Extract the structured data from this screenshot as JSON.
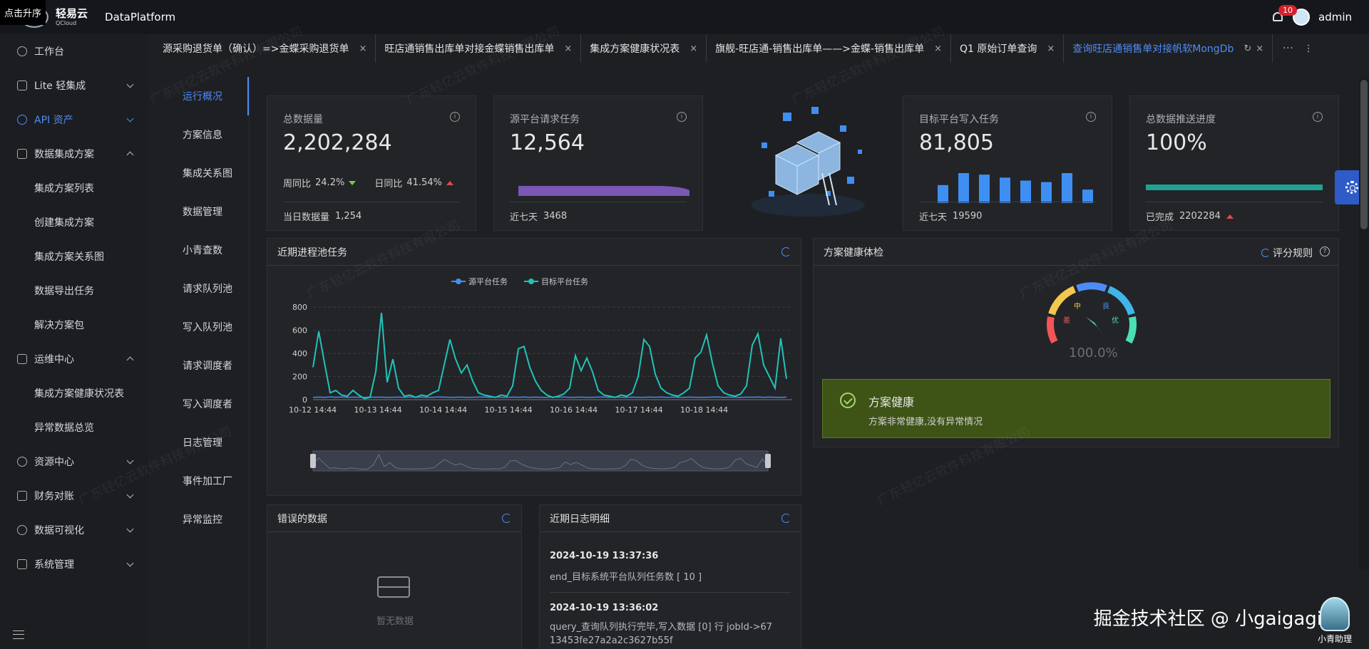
{
  "header": {
    "promo": "点击升序",
    "logo_text": "轻易云",
    "logo_sub": "QCloud",
    "app_name": "DataPlatform",
    "notification_count": "10",
    "user": "admin"
  },
  "sidebar": {
    "items": [
      {
        "label": "工作台",
        "icon": "clock-icon"
      },
      {
        "label": "Lite 轻集成",
        "icon": "lite-icon",
        "expand": "down"
      },
      {
        "label": "API 资产",
        "icon": "compass-icon",
        "expand": "down",
        "active": true
      },
      {
        "label": "数据集成方案",
        "icon": "share-icon",
        "expand": "up"
      },
      {
        "label": "集成方案列表",
        "sub": true
      },
      {
        "label": "创建集成方案",
        "sub": true
      },
      {
        "label": "集成方案关系图",
        "sub": true
      },
      {
        "label": "数据导出任务",
        "sub": true
      },
      {
        "label": "解决方案包",
        "sub": true
      },
      {
        "label": "运维中心",
        "icon": "bolt-icon",
        "expand": "up"
      },
      {
        "label": "集成方案健康状况表",
        "sub": true
      },
      {
        "label": "异常数据总览",
        "sub": true
      },
      {
        "label": "资源中心",
        "icon": "resource-icon",
        "expand": "down"
      },
      {
        "label": "财务对账",
        "icon": "finance-icon",
        "expand": "down"
      },
      {
        "label": "数据可视化",
        "icon": "chart-icon",
        "expand": "down"
      },
      {
        "label": "系统管理",
        "icon": "system-icon",
        "expand": "down"
      }
    ]
  },
  "tabs": [
    {
      "label": "源采购退货单（确认）=>金蝶采购退货单"
    },
    {
      "label": "旺店通销售出库单对接金蝶销售出库单"
    },
    {
      "label": "集成方案健康状况表"
    },
    {
      "label": "旗舰-旺店通-销售出库单——>金蝶-销售出库单"
    },
    {
      "label": "Q1 原始订单查询"
    },
    {
      "label": "查询旺店通销售单对接帆软MongDb",
      "active": true
    }
  ],
  "subnav": [
    "运行概况",
    "方案信息",
    "集成关系图",
    "数据管理",
    "小青查数",
    "请求队列池",
    "写入队列池",
    "请求调度者",
    "写入调度者",
    "日志管理",
    "事件加工厂",
    "异常监控"
  ],
  "stats": {
    "total": {
      "title": "总数据量",
      "value": "2,202,284",
      "wow_label": "周同比",
      "wow": "24.2%",
      "dod_label": "日同比",
      "dod": "41.54%",
      "footer_label": "当日数据量",
      "footer_value": "1,254"
    },
    "source": {
      "title": "源平台请求任务",
      "value": "12,564",
      "footer_label": "近七天",
      "footer_value": "3468"
    },
    "target": {
      "title": "目标平台写入任务",
      "value": "81,805",
      "footer_label": "近七天",
      "footer_value": "19590",
      "bars": [
        0.6,
        1.0,
        0.95,
        0.85,
        0.75,
        0.7,
        1.0,
        0.45
      ],
      "bar_color": "#3f8ff2"
    },
    "progress": {
      "title": "总数据推送进度",
      "value": "100%",
      "fill": 1.0,
      "footer_label": "已完成",
      "footer_value": "2202284",
      "bar_color": "#1fa291"
    }
  },
  "panels": {
    "process": {
      "title": "近期进程池任务"
    },
    "health": {
      "title": "方案健康体检",
      "rules": "评分规则",
      "gauge_value": "100.0%",
      "labels": {
        "poor": "差",
        "mid": "中",
        "good": "良",
        "best": "优"
      },
      "status_title": "方案健康",
      "status_desc": "方案非常健康,没有异常情况"
    },
    "errors": {
      "title": "错误的数据",
      "empty": "暂无数据"
    },
    "logs": {
      "title": "近期日志明细",
      "entries": [
        {
          "time": "2024-10-19 13:37:36",
          "text": "end_目标系统平台队列任务数 [ 10 ]"
        },
        {
          "time": "2024-10-19 13:36:02",
          "text": "query_查询队列执行完毕,写入数据 [0] 行 jobId->6713453fe27a2a2c3627b55f"
        }
      ]
    }
  },
  "chart_data": {
    "type": "line",
    "legend": [
      "源平台任务",
      "目标平台任务"
    ],
    "legend_placement": "top-center",
    "x_ticks": [
      "10-12 14:44",
      "10-13 14:44",
      "10-14 14:44",
      "10-15 14:44",
      "10-16 14:44",
      "10-17 14:44",
      "10-18 14:44"
    ],
    "y_ticks": [
      "0",
      "200",
      "400",
      "600",
      "800"
    ],
    "ylim": [
      0,
      800
    ],
    "colors": {
      "source": "#3f8ff2",
      "target": "#20c3b6"
    },
    "series": [
      {
        "name": "源平台任务",
        "values": [
          20,
          22,
          20,
          24,
          21,
          23,
          20,
          22,
          21,
          20,
          23,
          21,
          22,
          20,
          21,
          22,
          20,
          23,
          21,
          22,
          20,
          21,
          23,
          22,
          20,
          21,
          22,
          20,
          21,
          22,
          23,
          20,
          22,
          21,
          20,
          22,
          21,
          23,
          20,
          22,
          21,
          20,
          22,
          21,
          23,
          20,
          21,
          22,
          20,
          21,
          22,
          23,
          20,
          22,
          21,
          20,
          22,
          21,
          20,
          22,
          21,
          23,
          20,
          22,
          21,
          20,
          22,
          21,
          20,
          21,
          22,
          23,
          20,
          22,
          21,
          20,
          22,
          21,
          23,
          20,
          22,
          21,
          20,
          22
        ]
      },
      {
        "name": "目标平台任务",
        "values": [
          280,
          590,
          320,
          60,
          80,
          40,
          30,
          80,
          40,
          10,
          20,
          240,
          750,
          150,
          350,
          100,
          30,
          40,
          20,
          40,
          30,
          60,
          80,
          300,
          520,
          350,
          230,
          300,
          160,
          60,
          40,
          30,
          20,
          40,
          30,
          120,
          440,
          460,
          280,
          160,
          80,
          40,
          20,
          30,
          50,
          100,
          380,
          250,
          360,
          240,
          80,
          40,
          30,
          20,
          40,
          30,
          60,
          200,
          520,
          460,
          220,
          100,
          60,
          40,
          30,
          60,
          100,
          360,
          410,
          560,
          320,
          120,
          60,
          40,
          30,
          50,
          120,
          470,
          570,
          300,
          200,
          100,
          530,
          180
        ]
      }
    ]
  },
  "floating": {
    "brand": "掘金技术社区 @ 小gaigagi",
    "assistant": "小青助理",
    "watermark": "广东轻亿云软件科技有限公司"
  }
}
